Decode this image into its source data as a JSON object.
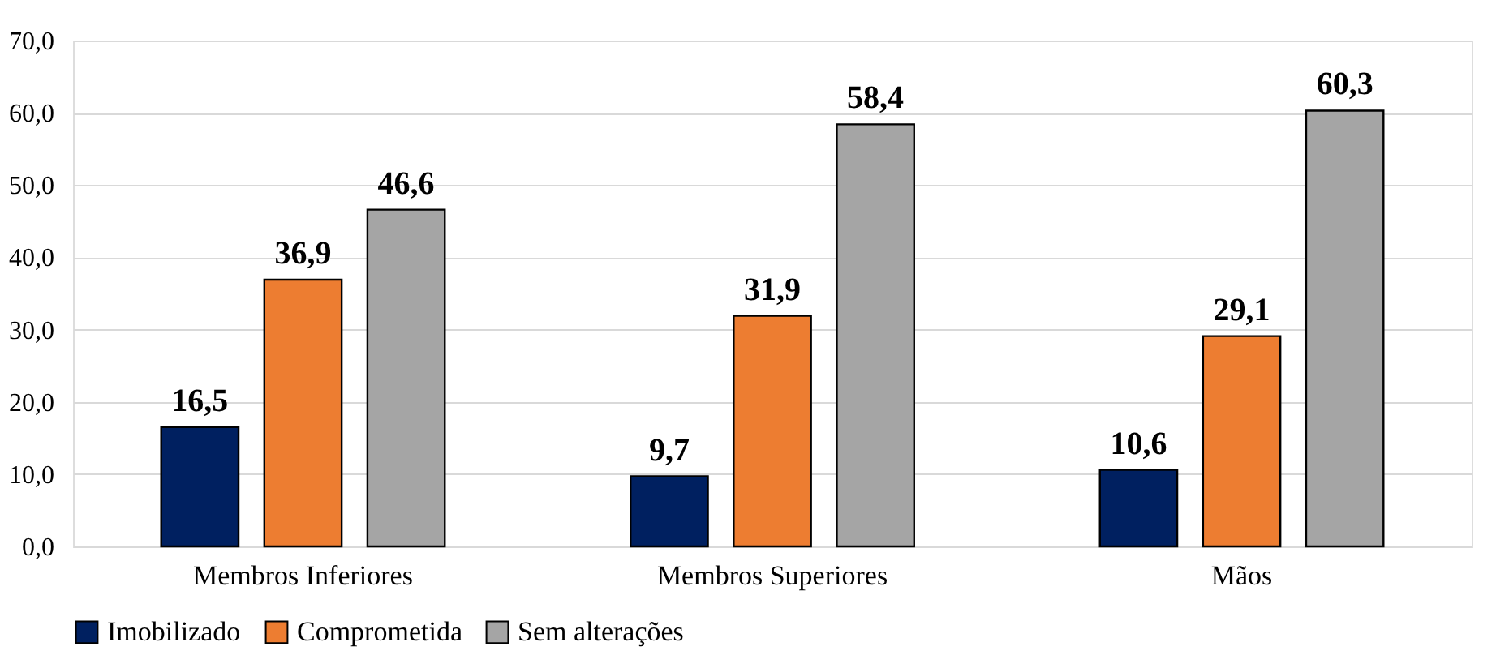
{
  "chart_data": {
    "type": "bar",
    "categories": [
      "Membros Inferiores",
      "Membros Superiores",
      "Mãos"
    ],
    "series": [
      {
        "name": "Imobilizado",
        "color": "#002060",
        "values": [
          16.5,
          9.7,
          10.6
        ],
        "value_labels": [
          "16,5",
          "9,7",
          "10,6"
        ]
      },
      {
        "name": "Comprometida",
        "color": "#ed7d31",
        "values": [
          36.9,
          31.9,
          29.1
        ],
        "value_labels": [
          "36,9",
          "31,9",
          "29,1"
        ]
      },
      {
        "name": "Sem alterações",
        "color": "#a5a5a5",
        "values": [
          46.6,
          58.4,
          60.3
        ],
        "value_labels": [
          "46,6",
          "58,4",
          "60,3"
        ]
      }
    ],
    "ylim": [
      0,
      70
    ],
    "yticks": [
      {
        "value": 0,
        "label": "0,0"
      },
      {
        "value": 10,
        "label": "10,0"
      },
      {
        "value": 20,
        "label": "20,0"
      },
      {
        "value": 30,
        "label": "30,0"
      },
      {
        "value": 40,
        "label": "40,0"
      },
      {
        "value": 50,
        "label": "50,0"
      },
      {
        "value": 60,
        "label": "60,0"
      },
      {
        "value": 70,
        "label": "70,0"
      }
    ],
    "grid": "y",
    "legend": "bottom"
  }
}
